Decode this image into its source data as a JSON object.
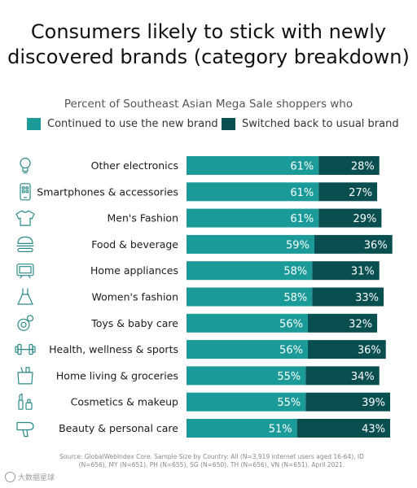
{
  "title_line1": "Consumers likely to stick with newly",
  "title_line2": "discovered brands (category breakdown)",
  "subtitle": "Percent of Southeast Asian Mega Sale shoppers who",
  "source": "Source: GlobalWebIndex Core. Sample Size by Country: All (N=3,919 internet users aged 16-64), ID (N=656), MY (N=651), PH (N=655), SG (N=650), TH (N=656), VN (N=651). April 2021.",
  "watermark": "大数据星球",
  "colors": {
    "continued": "#1a9a98",
    "switched": "#0a4f4f",
    "icon": "#2a8a88"
  },
  "chart_data": {
    "type": "bar",
    "orientation": "horizontal",
    "stacked": true,
    "title": "Consumers likely to stick with newly discovered brands (category breakdown)",
    "subtitle": "Percent of Southeast Asian Mega Sale shoppers who",
    "legend_position": "top",
    "grid": false,
    "xlim": [
      0,
      100
    ],
    "categories": [
      "Other electronics",
      "Smartphones & accessories",
      "Men's Fashion",
      "Food & beverage",
      "Home appliances",
      "Women's fashion",
      "Toys & baby care",
      "Health, wellness & sports",
      "Home living & groceries",
      "Cosmetics & makeup",
      "Beauty & personal care"
    ],
    "icons": [
      "lightbulb-icon",
      "smartphone-icon",
      "tshirt-icon",
      "burger-icon",
      "television-icon",
      "dress-icon",
      "pacifier-icon",
      "dumbbell-icon",
      "grocery-bag-icon",
      "cosmetics-icon",
      "hairdryer-icon"
    ],
    "series": [
      {
        "name": "Continued to use the new brand",
        "values": [
          61,
          61,
          61,
          59,
          58,
          58,
          56,
          56,
          55,
          55,
          51
        ]
      },
      {
        "name": "Switched back to usual brand",
        "values": [
          28,
          27,
          29,
          36,
          31,
          33,
          32,
          36,
          34,
          39,
          43
        ]
      }
    ]
  }
}
